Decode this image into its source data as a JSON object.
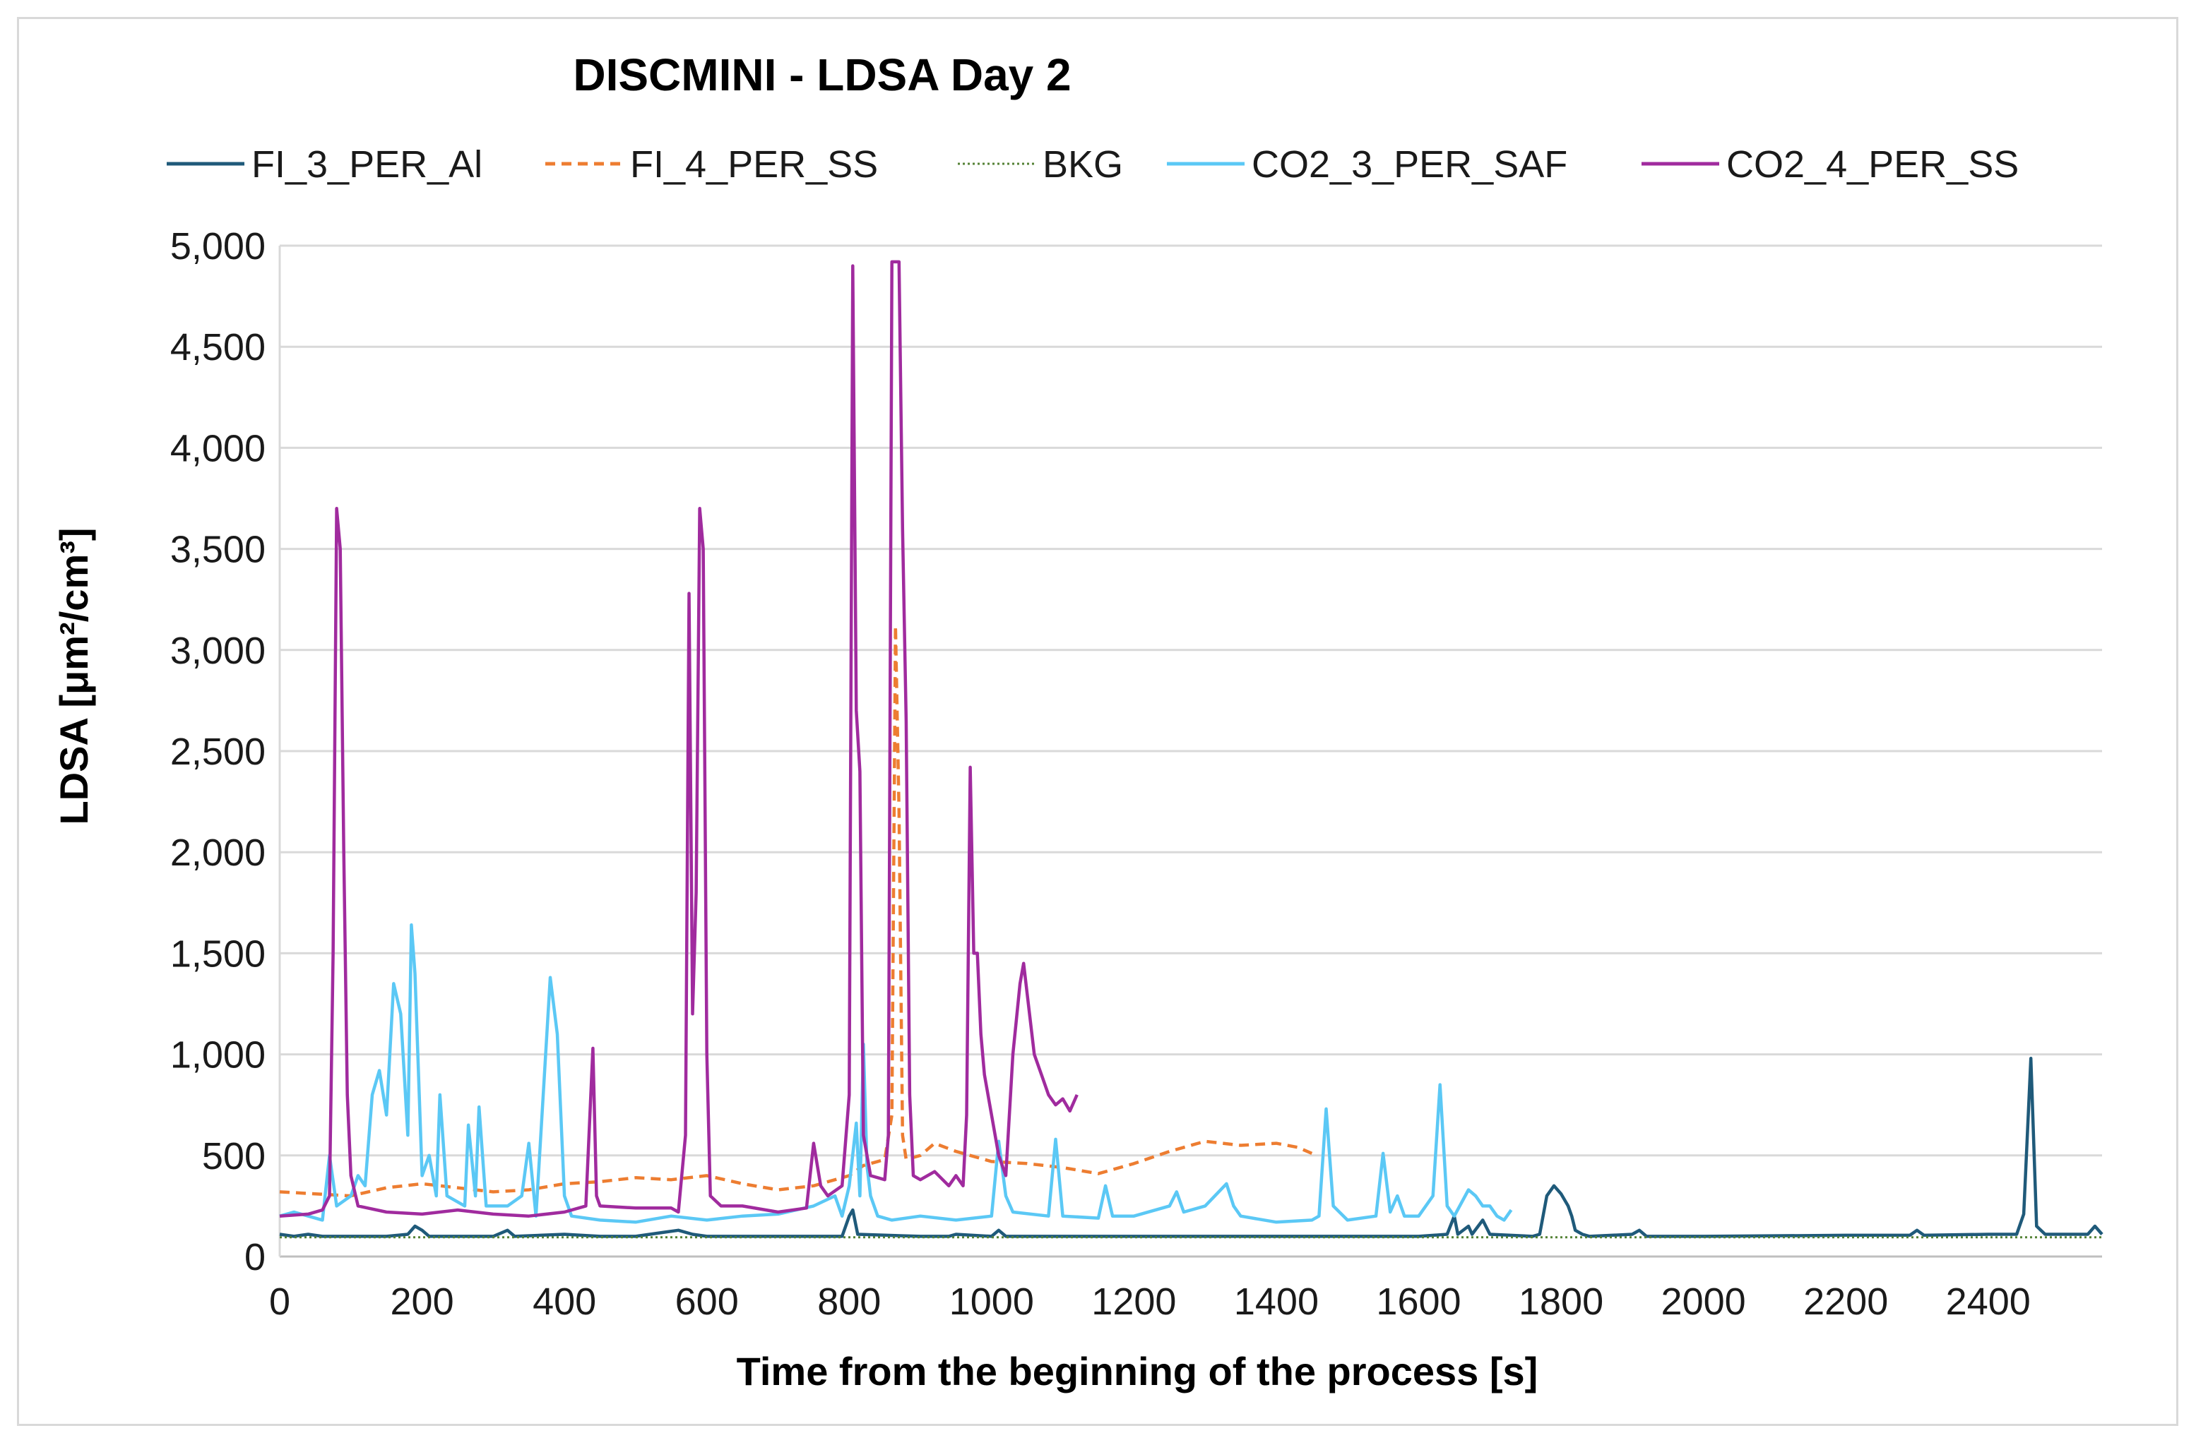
{
  "chart_data": {
    "type": "line",
    "title": "DISCMINI - LDSA Day 2",
    "xlabel": "Time from the beginning of the process [s]",
    "ylabel": "LDSA [μm²/cm³]",
    "xlim": [
      0,
      2560
    ],
    "ylim": [
      0,
      5000
    ],
    "x_ticks": [
      0,
      200,
      400,
      600,
      800,
      1000,
      1200,
      1400,
      1600,
      1800,
      2000,
      2200,
      2400
    ],
    "x_tick_labels": [
      "0",
      "200",
      "400",
      "600",
      "800",
      "1000",
      "1200",
      "1400",
      "1600",
      "1800",
      "2000",
      "2200",
      "2400"
    ],
    "y_ticks": [
      0,
      500,
      1000,
      1500,
      2000,
      2500,
      3000,
      3500,
      4000,
      4500,
      5000
    ],
    "y_tick_labels": [
      "0",
      "500",
      "1,000",
      "1,500",
      "2,000",
      "2,500",
      "3,000",
      "3,500",
      "4,000",
      "4,500",
      "5,000"
    ],
    "grid": "horizontal",
    "legend_position": "top",
    "series": [
      {
        "name": "FI_3_PER_Al",
        "color": "#1f5a7a",
        "dash": "solid",
        "points": [
          [
            0,
            110
          ],
          [
            20,
            100
          ],
          [
            40,
            110
          ],
          [
            60,
            100
          ],
          [
            100,
            100
          ],
          [
            150,
            100
          ],
          [
            180,
            110
          ],
          [
            190,
            150
          ],
          [
            200,
            130
          ],
          [
            210,
            100
          ],
          [
            300,
            100
          ],
          [
            320,
            130
          ],
          [
            330,
            100
          ],
          [
            400,
            110
          ],
          [
            450,
            100
          ],
          [
            500,
            100
          ],
          [
            540,
            120
          ],
          [
            560,
            130
          ],
          [
            580,
            110
          ],
          [
            600,
            100
          ],
          [
            700,
            100
          ],
          [
            790,
            100
          ],
          [
            800,
            200
          ],
          [
            805,
            230
          ],
          [
            812,
            110
          ],
          [
            900,
            100
          ],
          [
            940,
            100
          ],
          [
            950,
            110
          ],
          [
            1000,
            100
          ],
          [
            1010,
            130
          ],
          [
            1020,
            100
          ],
          [
            1200,
            100
          ],
          [
            1400,
            100
          ],
          [
            1600,
            100
          ],
          [
            1640,
            110
          ],
          [
            1650,
            200
          ],
          [
            1655,
            110
          ],
          [
            1670,
            150
          ],
          [
            1675,
            110
          ],
          [
            1690,
            180
          ],
          [
            1700,
            110
          ],
          [
            1760,
            100
          ],
          [
            1770,
            110
          ],
          [
            1780,
            300
          ],
          [
            1790,
            350
          ],
          [
            1800,
            310
          ],
          [
            1810,
            250
          ],
          [
            1815,
            200
          ],
          [
            1820,
            130
          ],
          [
            1830,
            110
          ],
          [
            1840,
            100
          ],
          [
            1900,
            110
          ],
          [
            1910,
            130
          ],
          [
            1920,
            100
          ],
          [
            2000,
            100
          ],
          [
            2200,
            105
          ],
          [
            2290,
            105
          ],
          [
            2300,
            130
          ],
          [
            2310,
            105
          ],
          [
            2400,
            110
          ],
          [
            2440,
            110
          ],
          [
            2450,
            210
          ],
          [
            2460,
            980
          ],
          [
            2468,
            150
          ],
          [
            2480,
            110
          ],
          [
            2540,
            110
          ],
          [
            2550,
            150
          ],
          [
            2560,
            110
          ]
        ]
      },
      {
        "name": "FI_4_PER_SS",
        "color": "#ed7d31",
        "dash": "dashed",
        "points": [
          [
            0,
            320
          ],
          [
            50,
            310
          ],
          [
            100,
            300
          ],
          [
            150,
            340
          ],
          [
            200,
            360
          ],
          [
            250,
            340
          ],
          [
            300,
            320
          ],
          [
            350,
            330
          ],
          [
            400,
            360
          ],
          [
            450,
            370
          ],
          [
            500,
            390
          ],
          [
            550,
            380
          ],
          [
            600,
            400
          ],
          [
            650,
            360
          ],
          [
            700,
            330
          ],
          [
            750,
            350
          ],
          [
            800,
            400
          ],
          [
            820,
            450
          ],
          [
            840,
            470
          ],
          [
            850,
            480
          ],
          [
            860,
            700
          ],
          [
            865,
            3120
          ],
          [
            870,
            2200
          ],
          [
            875,
            600
          ],
          [
            880,
            480
          ],
          [
            900,
            500
          ],
          [
            920,
            560
          ],
          [
            950,
            520
          ],
          [
            1000,
            470
          ],
          [
            1050,
            460
          ],
          [
            1100,
            440
          ],
          [
            1150,
            410
          ],
          [
            1200,
            460
          ],
          [
            1250,
            520
          ],
          [
            1300,
            570
          ],
          [
            1350,
            550
          ],
          [
            1400,
            560
          ],
          [
            1430,
            540
          ],
          [
            1450,
            510
          ]
        ]
      },
      {
        "name": "BKG",
        "color": "#548235",
        "dash": "dotted",
        "points": [
          [
            0,
            95
          ],
          [
            500,
            95
          ],
          [
            1000,
            95
          ],
          [
            1500,
            95
          ],
          [
            2000,
            95
          ],
          [
            2560,
            95
          ]
        ]
      },
      {
        "name": "CO2_3_PER_SAF",
        "color": "#5bc8f5",
        "dash": "solid",
        "points": [
          [
            0,
            200
          ],
          [
            20,
            220
          ],
          [
            40,
            200
          ],
          [
            60,
            180
          ],
          [
            70,
            500
          ],
          [
            80,
            250
          ],
          [
            100,
            300
          ],
          [
            110,
            400
          ],
          [
            120,
            350
          ],
          [
            130,
            800
          ],
          [
            140,
            920
          ],
          [
            150,
            700
          ],
          [
            160,
            1350
          ],
          [
            170,
            1200
          ],
          [
            180,
            600
          ],
          [
            185,
            1640
          ],
          [
            190,
            1400
          ],
          [
            200,
            400
          ],
          [
            210,
            500
          ],
          [
            220,
            300
          ],
          [
            225,
            800
          ],
          [
            235,
            300
          ],
          [
            260,
            250
          ],
          [
            265,
            650
          ],
          [
            275,
            300
          ],
          [
            280,
            740
          ],
          [
            290,
            250
          ],
          [
            300,
            250
          ],
          [
            320,
            250
          ],
          [
            340,
            300
          ],
          [
            350,
            560
          ],
          [
            360,
            200
          ],
          [
            380,
            1380
          ],
          [
            390,
            1100
          ],
          [
            400,
            300
          ],
          [
            410,
            200
          ],
          [
            450,
            180
          ],
          [
            500,
            170
          ],
          [
            550,
            200
          ],
          [
            600,
            180
          ],
          [
            650,
            200
          ],
          [
            700,
            210
          ],
          [
            750,
            250
          ],
          [
            780,
            300
          ],
          [
            790,
            200
          ],
          [
            800,
            350
          ],
          [
            810,
            660
          ],
          [
            815,
            300
          ],
          [
            820,
            1050
          ],
          [
            825,
            450
          ],
          [
            830,
            300
          ],
          [
            840,
            200
          ],
          [
            860,
            180
          ],
          [
            900,
            200
          ],
          [
            950,
            180
          ],
          [
            1000,
            200
          ],
          [
            1010,
            570
          ],
          [
            1020,
            300
          ],
          [
            1030,
            220
          ],
          [
            1080,
            200
          ],
          [
            1090,
            580
          ],
          [
            1100,
            200
          ],
          [
            1150,
            190
          ],
          [
            1160,
            350
          ],
          [
            1170,
            200
          ],
          [
            1200,
            200
          ],
          [
            1250,
            250
          ],
          [
            1260,
            320
          ],
          [
            1270,
            220
          ],
          [
            1300,
            250
          ],
          [
            1330,
            360
          ],
          [
            1340,
            250
          ],
          [
            1350,
            200
          ],
          [
            1400,
            170
          ],
          [
            1450,
            180
          ],
          [
            1460,
            200
          ],
          [
            1470,
            730
          ],
          [
            1480,
            250
          ],
          [
            1500,
            180
          ],
          [
            1540,
            200
          ],
          [
            1550,
            510
          ],
          [
            1560,
            220
          ],
          [
            1570,
            300
          ],
          [
            1580,
            200
          ],
          [
            1600,
            200
          ],
          [
            1620,
            300
          ],
          [
            1630,
            850
          ],
          [
            1640,
            250
          ],
          [
            1650,
            200
          ],
          [
            1670,
            330
          ],
          [
            1680,
            300
          ],
          [
            1690,
            250
          ],
          [
            1700,
            250
          ],
          [
            1710,
            200
          ],
          [
            1720,
            180
          ],
          [
            1730,
            230
          ]
        ]
      },
      {
        "name": "CO2_4_PER_SS",
        "color": "#a02b9e",
        "dash": "solid",
        "points": [
          [
            0,
            200
          ],
          [
            40,
            210
          ],
          [
            60,
            230
          ],
          [
            70,
            300
          ],
          [
            75,
            1500
          ],
          [
            80,
            3700
          ],
          [
            85,
            3500
          ],
          [
            90,
            2000
          ],
          [
            95,
            800
          ],
          [
            100,
            400
          ],
          [
            110,
            250
          ],
          [
            150,
            220
          ],
          [
            200,
            210
          ],
          [
            250,
            230
          ],
          [
            300,
            210
          ],
          [
            350,
            200
          ],
          [
            400,
            220
          ],
          [
            430,
            250
          ],
          [
            440,
            1030
          ],
          [
            445,
            300
          ],
          [
            450,
            250
          ],
          [
            500,
            240
          ],
          [
            550,
            240
          ],
          [
            560,
            220
          ],
          [
            570,
            600
          ],
          [
            575,
            3280
          ],
          [
            580,
            1200
          ],
          [
            585,
            1800
          ],
          [
            590,
            3700
          ],
          [
            595,
            3500
          ],
          [
            600,
            1000
          ],
          [
            605,
            300
          ],
          [
            620,
            250
          ],
          [
            650,
            250
          ],
          [
            700,
            220
          ],
          [
            740,
            240
          ],
          [
            750,
            560
          ],
          [
            760,
            350
          ],
          [
            770,
            300
          ],
          [
            790,
            350
          ],
          [
            800,
            800
          ],
          [
            805,
            4900
          ],
          [
            810,
            2700
          ],
          [
            815,
            2400
          ],
          [
            820,
            600
          ],
          [
            830,
            400
          ],
          [
            850,
            380
          ],
          [
            855,
            600
          ],
          [
            860,
            4920
          ],
          [
            870,
            4920
          ],
          [
            875,
            3600
          ],
          [
            880,
            2650
          ],
          [
            885,
            800
          ],
          [
            890,
            400
          ],
          [
            900,
            380
          ],
          [
            920,
            420
          ],
          [
            940,
            350
          ],
          [
            950,
            400
          ],
          [
            960,
            350
          ],
          [
            965,
            700
          ],
          [
            970,
            2420
          ],
          [
            975,
            1500
          ],
          [
            980,
            1500
          ],
          [
            985,
            1100
          ],
          [
            990,
            900
          ],
          [
            1000,
            700
          ],
          [
            1010,
            500
          ],
          [
            1020,
            400
          ],
          [
            1030,
            1000
          ],
          [
            1040,
            1350
          ],
          [
            1045,
            1450
          ],
          [
            1050,
            1300
          ],
          [
            1060,
            1000
          ],
          [
            1070,
            900
          ],
          [
            1080,
            800
          ],
          [
            1090,
            750
          ],
          [
            1100,
            780
          ],
          [
            1110,
            720
          ],
          [
            1120,
            800
          ]
        ]
      }
    ]
  }
}
